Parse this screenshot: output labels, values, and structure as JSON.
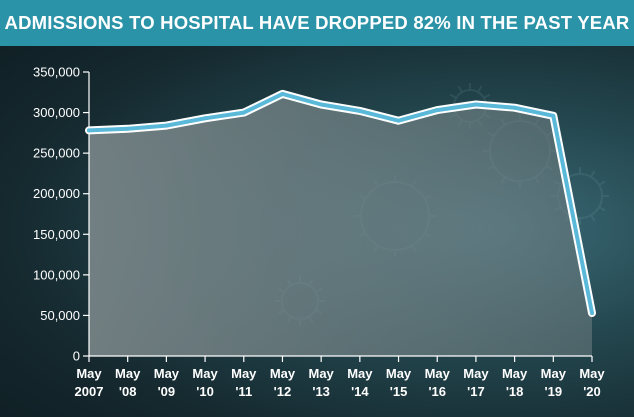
{
  "header": {
    "title": "ADMISSIONS TO HOSPITAL HAVE DROPPED 82% IN THE PAST YEAR"
  },
  "colors": {
    "title_bg": "#2a93a8",
    "line": "#5ab8d8",
    "line_inner": "#ffffff",
    "area": "#6f7f82"
  },
  "chart_data": {
    "type": "area",
    "title": "ADMISSIONS TO HOSPITAL HAVE DROPPED 82% IN THE PAST YEAR",
    "xlabel": "",
    "ylabel": "",
    "categories": [
      [
        "May",
        "2007"
      ],
      [
        "May",
        "'08"
      ],
      [
        "May",
        "'09"
      ],
      [
        "May",
        "'10"
      ],
      [
        "May",
        "'11"
      ],
      [
        "May",
        "'12"
      ],
      [
        "May",
        "'13"
      ],
      [
        "May",
        "'14"
      ],
      [
        "May",
        "'15"
      ],
      [
        "May",
        "'16"
      ],
      [
        "May",
        "'17"
      ],
      [
        "May",
        "'18"
      ],
      [
        "May",
        "'19"
      ],
      [
        "May",
        "'20"
      ]
    ],
    "values": [
      278000,
      280000,
      284000,
      293000,
      300000,
      323000,
      310000,
      302000,
      290000,
      303000,
      310000,
      306000,
      296000,
      53000
    ],
    "ylim": [
      0,
      350000
    ],
    "yticks": [
      {
        "value": 0,
        "label": "0"
      },
      {
        "value": 50000,
        "label": "50,000"
      },
      {
        "value": 100000,
        "label": "100,000"
      },
      {
        "value": 150000,
        "label": "150,000"
      },
      {
        "value": 200000,
        "label": "200,000"
      },
      {
        "value": 250000,
        "label": "250,000"
      },
      {
        "value": 300000,
        "label": "300,000"
      },
      {
        "value": 350000,
        "label": "350,000"
      }
    ],
    "grid": false,
    "legend": "none"
  }
}
